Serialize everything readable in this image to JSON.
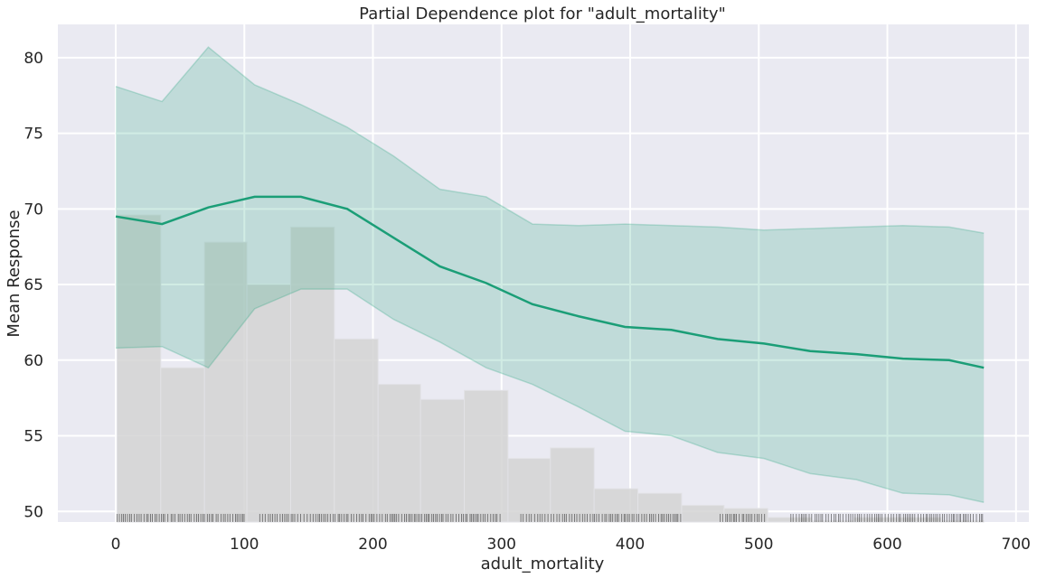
{
  "chart_data": {
    "type": "line",
    "title": "Partial Dependence plot for \"adult_mortality\"",
    "xlabel": "adult_mortality",
    "ylabel": "Mean Response",
    "xlim": [
      -45,
      710
    ],
    "ylim": [
      49.3,
      82.2
    ],
    "xticks": [
      0,
      100,
      200,
      300,
      400,
      500,
      600,
      700
    ],
    "yticks": [
      50,
      55,
      60,
      65,
      70,
      75,
      80
    ],
    "grid": true,
    "colors": {
      "background": "#eaeaf2",
      "grid": "#ffffff",
      "line": "#1b9e77",
      "band": "#1b9e77",
      "histogram": "#d3d3d3",
      "rug": "#000000"
    },
    "series": [
      {
        "x": [
          0,
          36,
          72,
          108,
          144,
          180,
          216,
          252,
          288,
          324,
          360,
          396,
          432,
          468,
          504,
          540,
          576,
          612,
          648,
          675
        ],
        "mean": [
          69.5,
          69.0,
          70.1,
          70.8,
          70.8,
          70.0,
          68.1,
          66.2,
          65.1,
          63.7,
          62.9,
          62.2,
          62.0,
          61.4,
          61.1,
          60.6,
          60.4,
          60.1,
          60.0,
          59.5
        ],
        "lower": [
          60.8,
          60.9,
          59.5,
          63.4,
          64.7,
          64.7,
          62.7,
          61.2,
          59.5,
          58.4,
          56.9,
          55.3,
          55.0,
          53.9,
          53.5,
          52.5,
          52.1,
          51.2,
          51.1,
          50.6
        ],
        "upper": [
          78.1,
          77.1,
          80.7,
          78.2,
          76.9,
          75.4,
          73.5,
          71.3,
          70.8,
          69.0,
          68.9,
          69.0,
          68.9,
          68.8,
          68.6,
          68.7,
          68.8,
          68.9,
          68.8,
          68.4
        ]
      }
    ],
    "histogram": {
      "bin_edges": [
        1,
        35,
        69,
        102,
        136,
        170,
        204,
        237,
        271,
        305,
        338,
        372,
        406,
        440,
        473,
        507,
        541,
        574,
        608,
        642,
        675
      ],
      "heights": [
        69.6,
        59.5,
        67.8,
        65.0,
        68.8,
        61.4,
        58.4,
        57.4,
        58.0,
        53.5,
        54.2,
        51.5,
        51.2,
        50.4,
        50.2,
        49.6,
        49.4,
        49.6,
        49.6,
        49.4
      ]
    },
    "rug": {
      "segments": [
        [
          1,
          100
        ],
        [
          112,
          300
        ],
        [
          315,
          440
        ],
        [
          470,
          505
        ],
        [
          525,
          675
        ]
      ]
    }
  }
}
